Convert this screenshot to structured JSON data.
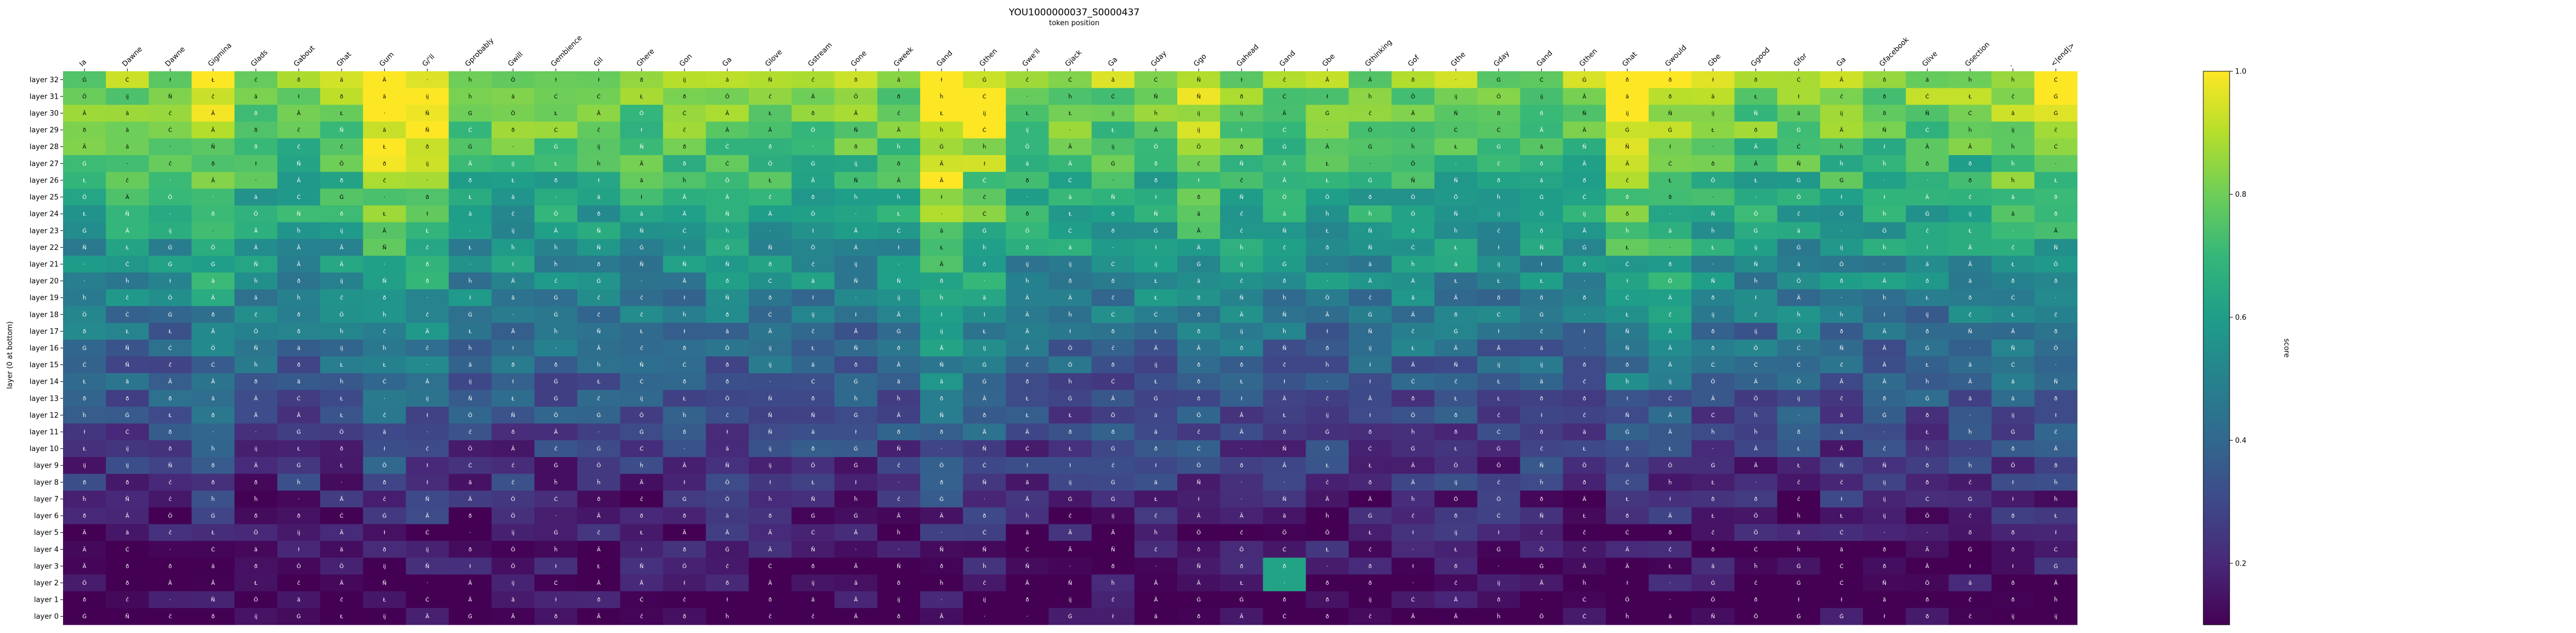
{
  "chart_data": {
    "type": "heatmap",
    "title": "YOU1000000037_S0000437",
    "subtitle": "token position",
    "ylabel": "layer (0 at bottom)",
    "colorbar": {
      "label": "score",
      "range": [
        0.1,
        1.0
      ],
      "ticks": [
        "0.2",
        "0.4",
        "0.6",
        "0.8",
        "1.0"
      ],
      "tick_values": [
        0.2,
        0.4,
        0.6,
        0.8,
        1.0
      ],
      "colormap": [
        "#440154",
        "#482878",
        "#3e4989",
        "#31688e",
        "#26828e",
        "#1f9e89",
        "#35b779",
        "#6ece58",
        "#b5de2b",
        "#fde725"
      ]
    },
    "x_tokens": [
      "Ia",
      "Dawne",
      "Dawne",
      "Gigmina",
      "Glads",
      "Gabout",
      "Ghat",
      "Gum",
      "G/'ll",
      "Gprobably",
      "Gwill",
      "Gembience",
      "Gil",
      "Ghere",
      "Gon",
      "Ga",
      "Glove",
      "Gstream",
      "Gone",
      "Gweek",
      "Gand",
      "Gthen",
      "Gwe'll",
      "Gjack",
      "Ga",
      "Gday",
      "Ggo",
      "Gahead",
      "Gand",
      "Gbe",
      "Gthinking",
      "Gof",
      "Gthe",
      "Gday",
      "Gand",
      "Gthen",
      "Ghat",
      "Gwould",
      "Gbe",
      "Ggood",
      "Gfor",
      "Ga",
      "Gfacebook",
      "Glive",
      "Gsection",
      ".",
      "<|end|>"
    ],
    "y_labels": [
      "layer 32",
      "layer 31",
      "layer 30",
      "layer 29",
      "layer 28",
      "layer 27",
      "layer 26",
      "layer 25",
      "layer 24",
      "layer 23",
      "layer 22",
      "layer 21",
      "layer 20",
      "layer 19",
      "layer 18",
      "layer 17",
      "layer 16",
      "layer 15",
      "layer 14",
      "layer 13",
      "layer 12",
      "layer 11",
      "layer 10",
      "layer 9",
      "layer 8",
      "layer 7",
      "layer 6",
      "layer 5",
      "layer 4",
      "layer 3",
      "layer 2",
      "layer 1",
      "layer 0"
    ],
    "cell_glyphs": [
      "Ä",
      "Ö",
      "Ã",
      "ð",
      "Ġ",
      "ĉ",
      "Ċ",
      "Ł",
      "·",
      "ł",
      "ĥ",
      "ĳ",
      "Ñ",
      "ã",
      "ð"
    ],
    "highlights": [
      {
        "row": "layer 3",
        "col_index": 28,
        "value": 0.62
      },
      {
        "row": "layer 2",
        "col_index": 28,
        "value": 0.62
      }
    ]
  }
}
